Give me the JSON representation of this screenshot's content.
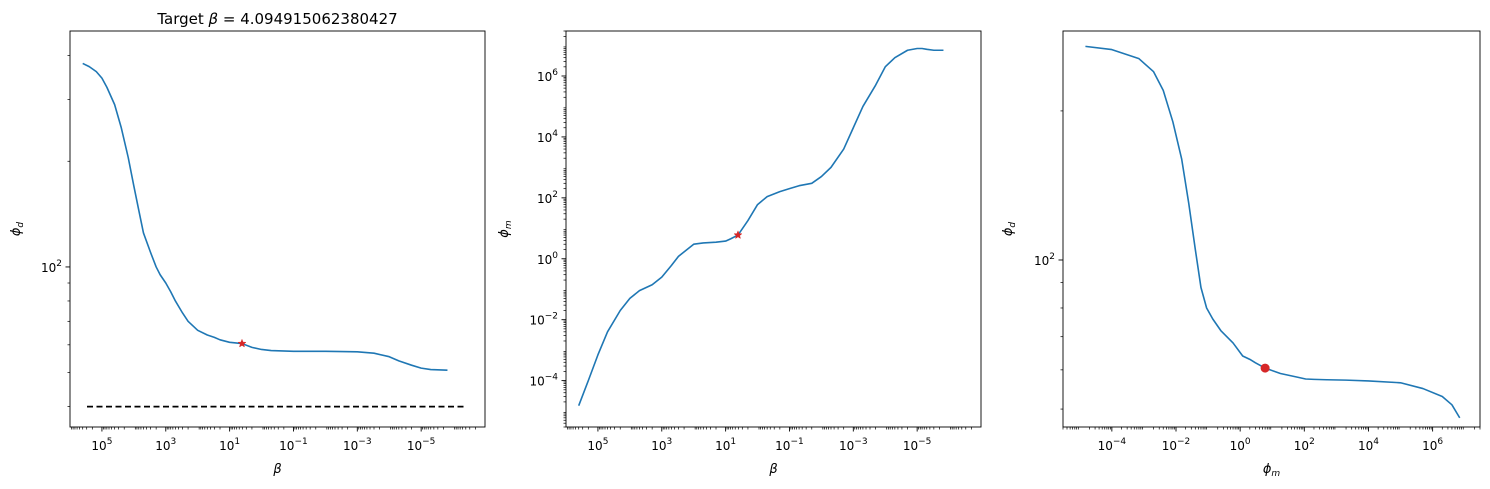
{
  "colors": {
    "line": "#1f77b4",
    "marker": "#d62728",
    "target_line": "#000000",
    "axes": "#000000"
  },
  "chart_data": [
    {
      "type": "line",
      "title_prefix": "Target ",
      "title_symbol": "β",
      "title_suffix": " = 4.094915062380427",
      "xlabel_base": "β",
      "xlabel_sub": "",
      "ylabel_base": "ϕ",
      "ylabel_sub": "d",
      "xscale": "log",
      "yscale": "log",
      "x_reversed": true,
      "xlim": [
        1000000,
        1e-07
      ],
      "ylim": [
        35,
        470
      ],
      "xticks": [
        {
          "base": "10",
          "exp": "5",
          "value": 100000
        },
        {
          "base": "10",
          "exp": "3",
          "value": 1000
        },
        {
          "base": "10",
          "exp": "1",
          "value": 10
        },
        {
          "base": "10",
          "exp": "−1",
          "value": 0.1
        },
        {
          "base": "10",
          "exp": "−3",
          "value": 0.001
        },
        {
          "base": "10",
          "exp": "−5",
          "value": 1e-05
        }
      ],
      "yticks": [
        {
          "base": "10",
          "exp": "2",
          "value": 100
        }
      ],
      "grid": false,
      "series": [
        {
          "x": [
            400000,
            250000,
            150000,
            100000,
            70000,
            40000,
            25000,
            15000,
            10000,
            7000,
            5000,
            3000,
            2000,
            1500,
            1000,
            700,
            500,
            300,
            200,
            100,
            50,
            30,
            20,
            10,
            4.0949,
            2,
            1,
            0.5,
            0.1,
            0.01,
            0.003,
            0.001,
            0.0003,
            0.0001,
            5e-05,
            2e-05,
            1e-05,
            5e-06,
            1.5e-06
          ],
          "y": [
            380,
            372,
            360,
            345,
            325,
            290,
            250,
            205,
            170,
            145,
            125,
            110,
            100,
            95,
            90,
            85,
            80,
            74,
            70,
            66,
            64,
            63,
            62,
            61,
            60.5,
            59,
            58.2,
            57.8,
            57.5,
            57.5,
            57.4,
            57.3,
            56.8,
            55.5,
            54,
            52.5,
            51.5,
            51,
            50.8
          ]
        }
      ],
      "markers": [
        {
          "x": 4.094915062380427,
          "y": 60.5,
          "shape": "star"
        }
      ],
      "target_line": {
        "y": 40
      }
    },
    {
      "type": "line",
      "xlabel_base": "β",
      "xlabel_sub": "",
      "ylabel_base": "ϕ",
      "ylabel_sub": "m",
      "xscale": "log",
      "yscale": "log",
      "x_reversed": true,
      "xlim": [
        1000000,
        1e-07
      ],
      "ylim": [
        3e-06,
        30000000
      ],
      "xticks": [
        {
          "base": "10",
          "exp": "5",
          "value": 100000
        },
        {
          "base": "10",
          "exp": "3",
          "value": 1000
        },
        {
          "base": "10",
          "exp": "1",
          "value": 10
        },
        {
          "base": "10",
          "exp": "−1",
          "value": 0.1
        },
        {
          "base": "10",
          "exp": "−3",
          "value": 0.001
        },
        {
          "base": "10",
          "exp": "−5",
          "value": 1e-05
        }
      ],
      "yticks": [
        {
          "base": "10",
          "exp": "−4",
          "value": 0.0001
        },
        {
          "base": "10",
          "exp": "−2",
          "value": 0.01
        },
        {
          "base": "10",
          "exp": "0",
          "value": 1
        },
        {
          "base": "10",
          "exp": "2",
          "value": 100
        },
        {
          "base": "10",
          "exp": "4",
          "value": 10000
        },
        {
          "base": "10",
          "exp": "6",
          "value": 1000000
        }
      ],
      "grid": false,
      "series": [
        {
          "x": [
            400000,
            200000,
            100000,
            50000,
            20000,
            10000,
            5000,
            2000,
            1000,
            500,
            300,
            100,
            50,
            20,
            10,
            7,
            4.0949,
            2,
            1,
            0.5,
            0.2,
            0.1,
            0.05,
            0.02,
            0.01,
            0.005,
            0.002,
            0.001,
            0.0005,
            0.0002,
            0.0001,
            5e-05,
            2e-05,
            1e-05,
            7e-06,
            5e-06,
            3e-06,
            1.5e-06
          ],
          "y": [
            1.5e-05,
            0.0001,
            0.0007,
            0.004,
            0.02,
            0.05,
            0.09,
            0.14,
            0.25,
            0.6,
            1.2,
            3,
            3.3,
            3.5,
            3.8,
            4.5,
            6,
            18,
            60,
            110,
            160,
            200,
            250,
            300,
            500,
            1000,
            4000,
            20000,
            100000,
            500000,
            2000000,
            4000000,
            7000000,
            8000000,
            8000000,
            7500000,
            7000000,
            7000000
          ]
        }
      ],
      "markers": [
        {
          "x": 4.094915062380427,
          "y": 6,
          "shape": "star"
        }
      ]
    },
    {
      "type": "line",
      "xlabel_base": "ϕ",
      "xlabel_sub": "m",
      "ylabel_base": "ϕ",
      "ylabel_sub": "d",
      "xscale": "log",
      "yscale": "log",
      "x_reversed": false,
      "xlim": [
        3e-06,
        30000000
      ],
      "ylim": [
        46,
        290
      ],
      "xticks": [
        {
          "base": "10",
          "exp": "−4",
          "value": 0.0001
        },
        {
          "base": "10",
          "exp": "−2",
          "value": 0.01
        },
        {
          "base": "10",
          "exp": "0",
          "value": 1
        },
        {
          "base": "10",
          "exp": "2",
          "value": 100
        },
        {
          "base": "10",
          "exp": "4",
          "value": 10000
        },
        {
          "base": "10",
          "exp": "6",
          "value": 1000000
        }
      ],
      "yticks": [
        {
          "base": "10",
          "exp": "2",
          "value": 100
        }
      ],
      "grid": false,
      "series": [
        {
          "x": [
            1.5e-05,
            0.0001,
            0.0007,
            0.002,
            0.004,
            0.008,
            0.015,
            0.025,
            0.04,
            0.06,
            0.09,
            0.14,
            0.25,
            0.6,
            1.2,
            2,
            3,
            6,
            18,
            60,
            110,
            200,
            500,
            2000,
            10000,
            100000,
            500000,
            2000000,
            4000000,
            7000000
          ],
          "y": [
            270,
            266,
            255,
            240,
            220,
            190,
            160,
            130,
            105,
            88,
            80,
            76,
            72,
            68,
            64,
            63,
            62,
            60.5,
            59,
            58,
            57.5,
            57.4,
            57.3,
            57.2,
            57,
            56.5,
            55,
            53,
            51,
            48
          ]
        }
      ],
      "markers": [
        {
          "x": 6,
          "y": 60.5,
          "shape": "circle"
        }
      ]
    }
  ]
}
